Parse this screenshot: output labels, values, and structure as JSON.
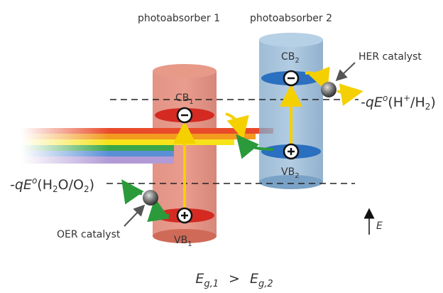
{
  "headers": {
    "photoabsorber_1": "photoabsorber 1",
    "photoabsorber_2": "photoabsorber 2"
  },
  "bands": {
    "cb1": {
      "main": "CB",
      "sub": "1"
    },
    "vb1": {
      "main": "VB",
      "sub": "1"
    },
    "cb2": {
      "main": "CB",
      "sub": "2"
    },
    "vb2": {
      "main": "VB",
      "sub": "2"
    }
  },
  "catalysts": {
    "her": "HER catalyst",
    "oer": "OER catalyst"
  },
  "potentials": {
    "her": {
      "prefix": "-q",
      "E": "E",
      "sup": "o",
      "open": "(H",
      "plus": "+",
      "mid": "/H",
      "sub": "2",
      "close": ")"
    },
    "oer": {
      "prefix": "-q",
      "E": "E",
      "sup": "o",
      "open": "(H",
      "sub1": "2",
      "mid": "O/O",
      "sub2": "2",
      "close": ")"
    }
  },
  "energy_axis": "E",
  "bandgap_relation": {
    "left_E": "E",
    "left_sub": "g,1",
    "op": ">",
    "right_E": "E",
    "right_sub": "g,2"
  }
}
